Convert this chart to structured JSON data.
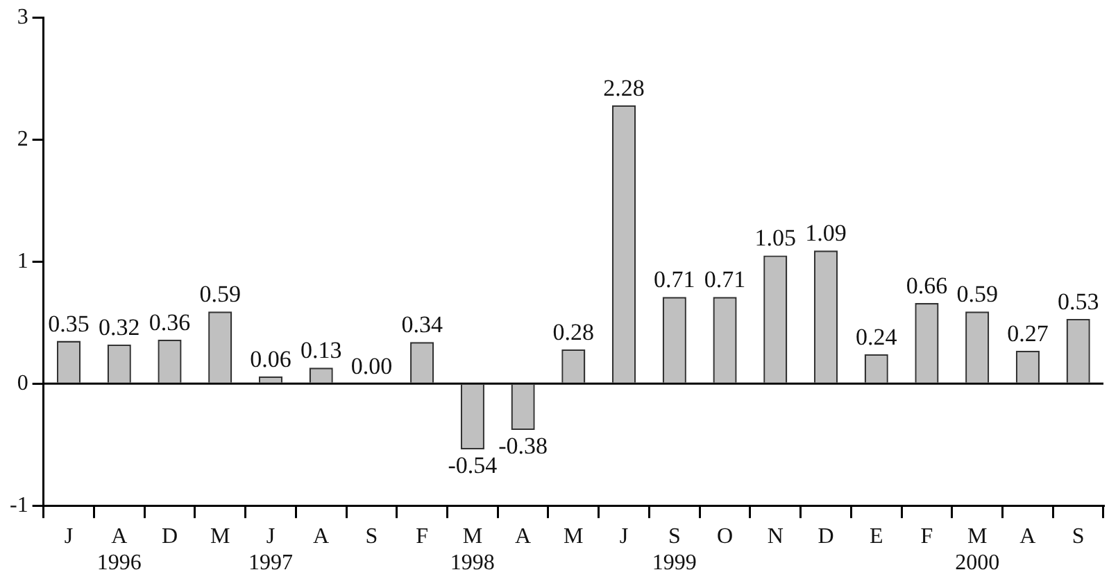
{
  "chart_data": {
    "type": "bar",
    "categories": [
      "J",
      "A\n1996",
      "D",
      "M",
      "J\n1997",
      "A",
      "S",
      "F",
      "M\n1998",
      "A",
      "M",
      "J",
      "S\n1999",
      "O",
      "N",
      "D",
      "E",
      "F",
      "M\n2000",
      "A",
      "S"
    ],
    "values": [
      0.35,
      0.32,
      0.36,
      0.59,
      0.06,
      0.13,
      0.0,
      0.34,
      -0.54,
      -0.38,
      0.28,
      2.28,
      0.71,
      0.71,
      1.05,
      1.09,
      0.24,
      0.66,
      0.59,
      0.27,
      0.53
    ],
    "color": "#c0c0c0",
    "ylim": [
      -1,
      3
    ],
    "yticks": [
      -1,
      0,
      1,
      2,
      3
    ],
    "ref_lines": [
      {
        "axis": "y",
        "value": 0,
        "color": "#000000"
      }
    ],
    "value_labels": [
      "0.35",
      "0.32",
      "0.36",
      "0.59",
      "0.06",
      "0.13",
      "0.00",
      "0.34",
      "-0.54",
      "-0.38",
      "0.28",
      "2.28",
      "0.71",
      "0.71",
      "1.05",
      "1.09",
      "0.24",
      "0.66",
      "0.59",
      "0.27",
      "0.53"
    ],
    "grid": false,
    "legend": false
  }
}
